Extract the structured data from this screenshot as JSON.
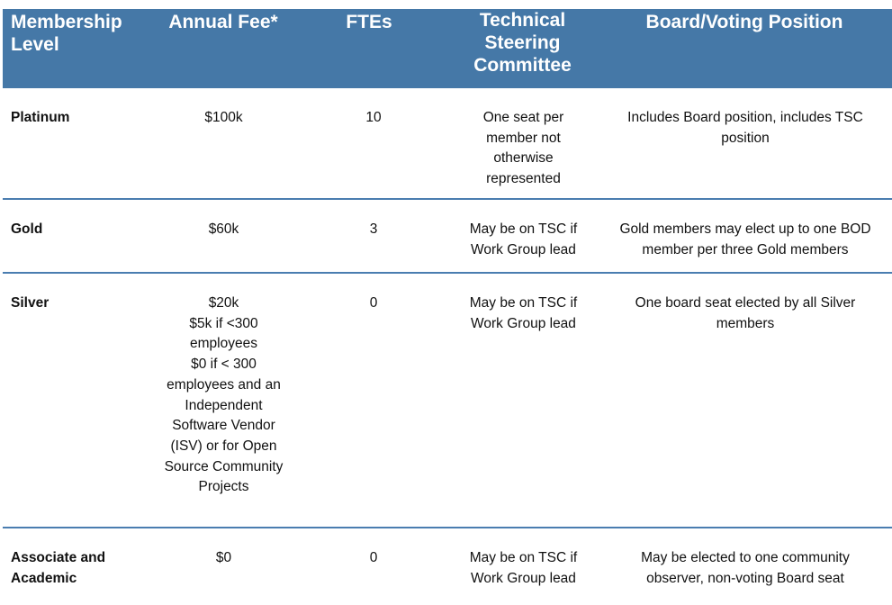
{
  "header": [
    "Membership Level",
    "Annual Fee*",
    "FTEs",
    "Technical Steering Committee",
    "Board/Voting Position"
  ],
  "rows": [
    {
      "level": "Platinum",
      "fee": "$100k",
      "ftes": "10",
      "tsc": "One seat per member not otherwise represented",
      "board": "Includes Board position, includes TSC position"
    },
    {
      "level": "Gold",
      "fee": "$60k",
      "ftes": "3",
      "tsc": "May be on TSC if Work Group lead",
      "board": "Gold members may elect up to one BOD member per three Gold members"
    },
    {
      "level": "Silver",
      "fee": "$20k",
      "fee_extra": [
        "$5k if <300 employees",
        "$0 if < 300 employees and an Independent Software Vendor (ISV) or for Open Source Community Projects"
      ],
      "ftes": "0",
      "tsc": "May be on TSC if Work Group lead",
      "board": "One board seat elected by all Silver members"
    },
    {
      "level": "Associate and Academic",
      "fee": "$0",
      "ftes": "0",
      "tsc": "May be on TSC if Work Group lead",
      "board": "May be elected to one community observer, non-voting Board seat"
    }
  ],
  "colors": {
    "header_bg": "#4578a7",
    "divider": "#4a7db0"
  }
}
